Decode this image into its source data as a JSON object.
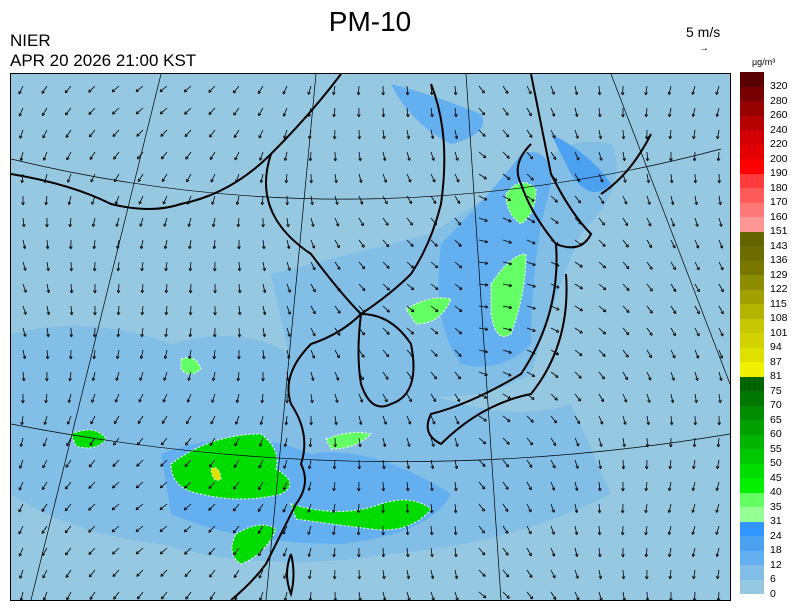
{
  "title": "PM-10",
  "org": "NIER",
  "datetime": "APR 20 2026 21:00 KST",
  "wind_scale": {
    "label": "5 m/s",
    "icon": "arrow-right-icon"
  },
  "legend": {
    "unit": "µg/m³",
    "labels": [
      "320",
      "280",
      "260",
      "240",
      "220",
      "200",
      "190",
      "180",
      "170",
      "160",
      "151",
      "143",
      "136",
      "129",
      "122",
      "115",
      "108",
      "101",
      "94",
      "87",
      "81",
      "75",
      "70",
      "65",
      "60",
      "55",
      "50",
      "45",
      "40",
      "35",
      "31",
      "24",
      "18",
      "12",
      "6",
      "0"
    ],
    "colors": [
      "#5a0000",
      "#780000",
      "#960000",
      "#b40000",
      "#d20000",
      "#e60000",
      "#ff0000",
      "#ff3c3c",
      "#ff5a5a",
      "#ff7878",
      "#ff9696",
      "#646400",
      "#6e6e00",
      "#787800",
      "#8c8c00",
      "#a0a000",
      "#b4b400",
      "#c8c800",
      "#d2d200",
      "#e1e100",
      "#f0f000",
      "#006400",
      "#007800",
      "#008c00",
      "#00a000",
      "#00b400",
      "#00c800",
      "#00dc00",
      "#00f000",
      "#64ff64",
      "#96ff96",
      "#3296ff",
      "#4ba0f0",
      "#64aff0",
      "#82bee6",
      "#96c8e1"
    ]
  },
  "map_colors": {
    "background": "#96c8e1",
    "low": "#82bee6",
    "mid": "#64aff0",
    "high": "#4ba0f0",
    "green": "#00dc00",
    "lightgreen": "#64ff64",
    "yellow": "#e1e100"
  }
}
